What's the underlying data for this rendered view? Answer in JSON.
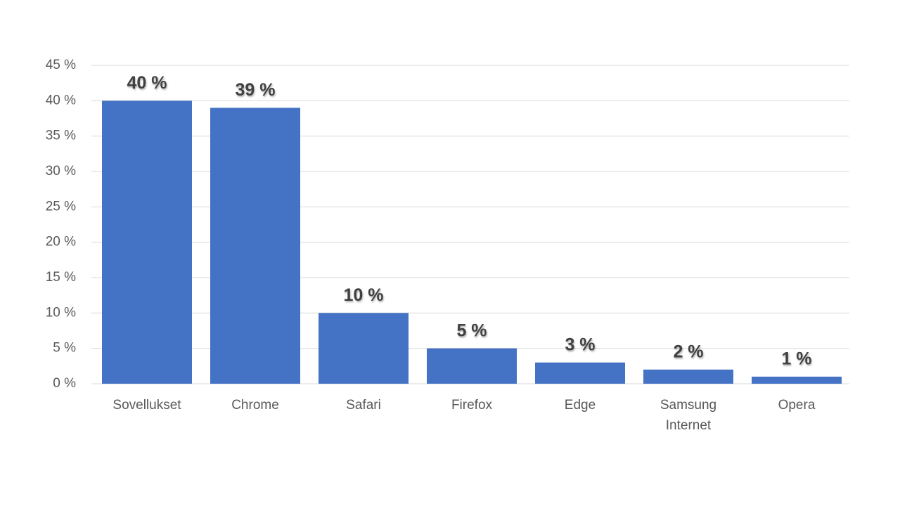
{
  "chart_data": {
    "type": "bar",
    "categories": [
      "Sovellukset",
      "Chrome",
      "Safari",
      "Firefox",
      "Edge",
      "Samsung Internet",
      "Opera"
    ],
    "values": [
      40,
      39,
      10,
      5,
      3,
      2,
      1
    ],
    "value_labels": [
      "40 %",
      "39 %",
      "10 %",
      "5 %",
      "3 %",
      "2 %",
      "1 %"
    ],
    "color": "#4472c4",
    "ylim": [
      0,
      45
    ],
    "yticks": [
      {
        "value": 0,
        "label": "0 %"
      },
      {
        "value": 5,
        "label": "5 %"
      },
      {
        "value": 10,
        "label": "10 %"
      },
      {
        "value": 15,
        "label": "15 %"
      },
      {
        "value": 20,
        "label": "20 %"
      },
      {
        "value": 25,
        "label": "25 %"
      },
      {
        "value": 30,
        "label": "30 %"
      },
      {
        "value": 35,
        "label": "35 %"
      },
      {
        "value": 40,
        "label": "40 %"
      },
      {
        "value": 45,
        "label": "45 %"
      }
    ],
    "grid": true
  }
}
